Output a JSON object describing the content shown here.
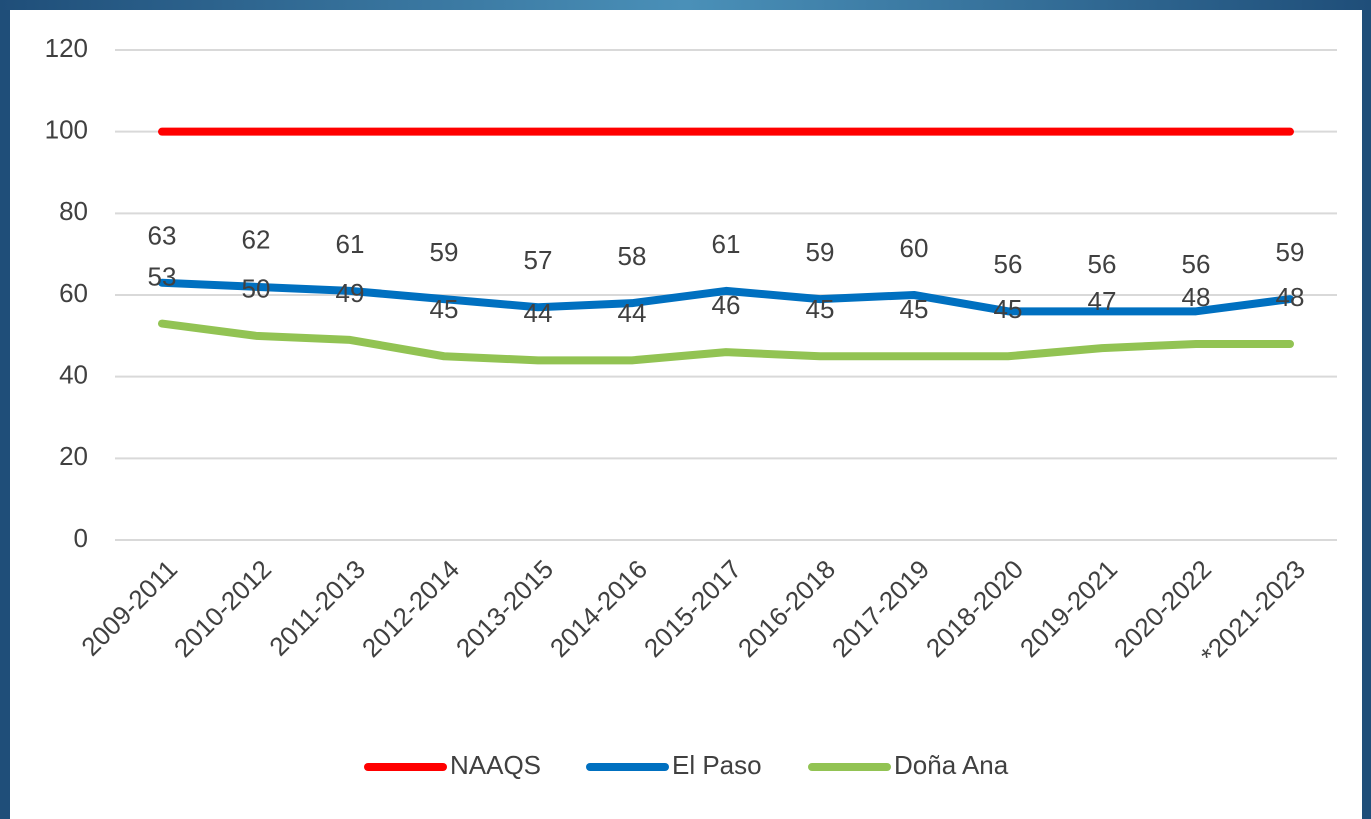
{
  "chart_data": {
    "type": "line",
    "categories": [
      "2009-2011",
      "2010-2012",
      "2011-2013",
      "2012-2014",
      "2013-2015",
      "2014-2016",
      "2015-2017",
      "2016-2018",
      "2017-2019",
      "2018-2020",
      "2019-2021",
      "2020-2022",
      "*2021-2023"
    ],
    "series": [
      {
        "name": "NAAQS",
        "color": "#ff0000",
        "data_labels": false,
        "values": [
          100,
          100,
          100,
          100,
          100,
          100,
          100,
          100,
          100,
          100,
          100,
          100,
          100
        ]
      },
      {
        "name": "El Paso",
        "color": "#0070c0",
        "data_labels": true,
        "values": [
          63,
          62,
          61,
          59,
          57,
          58,
          61,
          59,
          60,
          56,
          56,
          56,
          59
        ]
      },
      {
        "name": "Doña Ana",
        "color": "#92c353",
        "data_labels": true,
        "values": [
          53,
          50,
          49,
          45,
          44,
          44,
          46,
          45,
          45,
          45,
          47,
          48,
          48
        ]
      }
    ],
    "ylim": [
      0,
      120
    ],
    "yticks": [
      0,
      20,
      40,
      60,
      80,
      100,
      120
    ],
    "grid": true,
    "legend": "bottom"
  }
}
